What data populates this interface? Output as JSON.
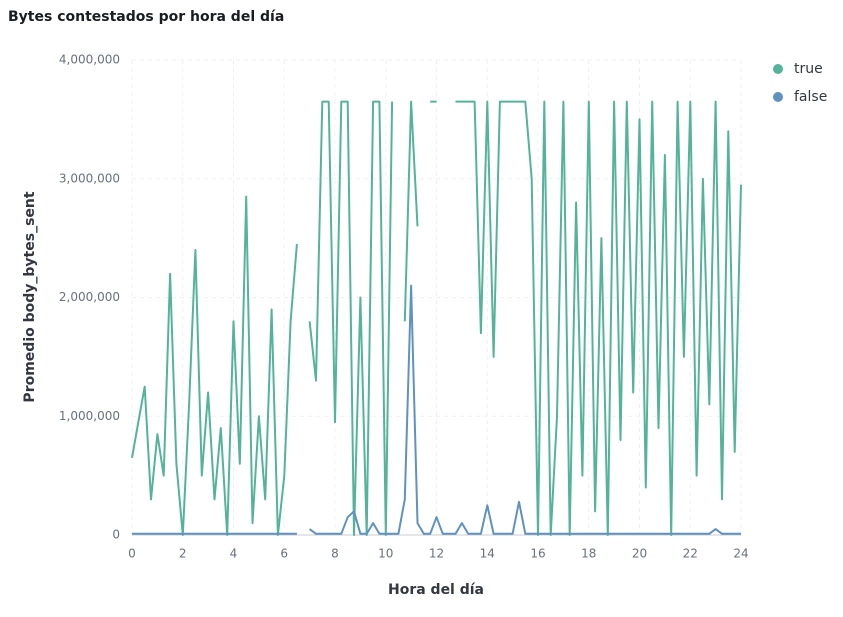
{
  "chart_data": {
    "type": "line",
    "title": "Bytes contestados por hora del día",
    "x_label": "Hora del día",
    "y_label": "Promedio body_bytes_sent",
    "x": [
      0,
      0.25,
      0.5,
      0.75,
      1,
      1.25,
      1.5,
      1.75,
      2,
      2.25,
      2.5,
      2.75,
      3,
      3.25,
      3.5,
      3.75,
      4,
      4.25,
      4.5,
      4.75,
      5,
      5.25,
      5.5,
      5.75,
      6,
      6.25,
      6.5,
      6.75,
      7,
      7.25,
      7.5,
      7.75,
      8,
      8.25,
      8.5,
      8.75,
      9,
      9.25,
      9.5,
      9.75,
      10,
      10.25,
      10.5,
      10.75,
      11,
      11.25,
      11.5,
      11.75,
      12,
      12.25,
      12.5,
      12.75,
      13,
      13.25,
      13.5,
      13.75,
      14,
      14.25,
      14.5,
      14.75,
      15,
      15.25,
      15.5,
      15.75,
      16,
      16.25,
      16.5,
      16.75,
      17,
      17.25,
      17.5,
      17.75,
      18,
      18.25,
      18.5,
      18.75,
      19,
      19.25,
      19.5,
      19.75,
      20,
      20.25,
      20.5,
      20.75,
      21,
      21.25,
      21.5,
      21.75,
      22,
      22.25,
      22.5,
      22.75,
      23,
      23.25,
      23.5,
      23.75,
      24
    ],
    "series": [
      {
        "name": "true",
        "color": "#54b399",
        "values": [
          650000,
          950000,
          1250000,
          300000,
          850000,
          500000,
          2200000,
          600000,
          0,
          1100000,
          2400000,
          500000,
          1200000,
          300000,
          900000,
          0,
          1800000,
          600000,
          2850000,
          100000,
          1000000,
          300000,
          1900000,
          0,
          500000,
          1800000,
          2450000,
          null,
          1800000,
          1300000,
          3650000,
          3650000,
          950000,
          3650000,
          3650000,
          0,
          2000000,
          0,
          3650000,
          3650000,
          0,
          3650000,
          null,
          1800000,
          3650000,
          2600000,
          null,
          3650000,
          3650000,
          null,
          null,
          3650000,
          3650000,
          3650000,
          3650000,
          1700000,
          3650000,
          1500000,
          3650000,
          3650000,
          3650000,
          3650000,
          3650000,
          3000000,
          0,
          3650000,
          0,
          1000000,
          3650000,
          0,
          2800000,
          500000,
          3650000,
          200000,
          2500000,
          0,
          3650000,
          800000,
          3650000,
          1200000,
          3500000,
          400000,
          3650000,
          900000,
          3200000,
          0,
          3650000,
          1500000,
          3650000,
          500000,
          3000000,
          1100000,
          3650000,
          300000,
          3400000,
          700000,
          2950000
        ]
      },
      {
        "name": "false",
        "color": "#6092c0",
        "values": [
          10000,
          10000,
          10000,
          10000,
          10000,
          10000,
          10000,
          10000,
          10000,
          10000,
          10000,
          10000,
          10000,
          10000,
          10000,
          10000,
          10000,
          10000,
          10000,
          10000,
          10000,
          10000,
          10000,
          10000,
          10000,
          10000,
          10000,
          null,
          50000,
          10000,
          10000,
          10000,
          10000,
          10000,
          150000,
          200000,
          10000,
          10000,
          100000,
          10000,
          10000,
          10000,
          10000,
          300000,
          2100000,
          100000,
          10000,
          10000,
          150000,
          10000,
          10000,
          10000,
          100000,
          10000,
          10000,
          10000,
          250000,
          10000,
          10000,
          10000,
          10000,
          280000,
          10000,
          10000,
          10000,
          10000,
          10000,
          10000,
          10000,
          10000,
          10000,
          10000,
          10000,
          10000,
          10000,
          10000,
          10000,
          10000,
          10000,
          10000,
          10000,
          10000,
          10000,
          10000,
          10000,
          10000,
          10000,
          10000,
          10000,
          10000,
          10000,
          10000,
          50000,
          10000,
          10000,
          10000,
          10000
        ]
      }
    ],
    "xlim": [
      0,
      24
    ],
    "xticks": [
      0,
      2,
      4,
      6,
      8,
      10,
      12,
      14,
      16,
      18,
      20,
      22,
      24
    ],
    "ylim": [
      0,
      4000000
    ],
    "yticks": [
      0,
      {
        "value": 1000000,
        "label": "1,000,000"
      },
      {
        "value": 2000000,
        "label": "2,000,000"
      },
      {
        "value": 3000000,
        "label": "3,000,000"
      },
      {
        "value": 4000000,
        "label": "4,000,000"
      }
    ],
    "grid": true,
    "legend": "top-right"
  }
}
